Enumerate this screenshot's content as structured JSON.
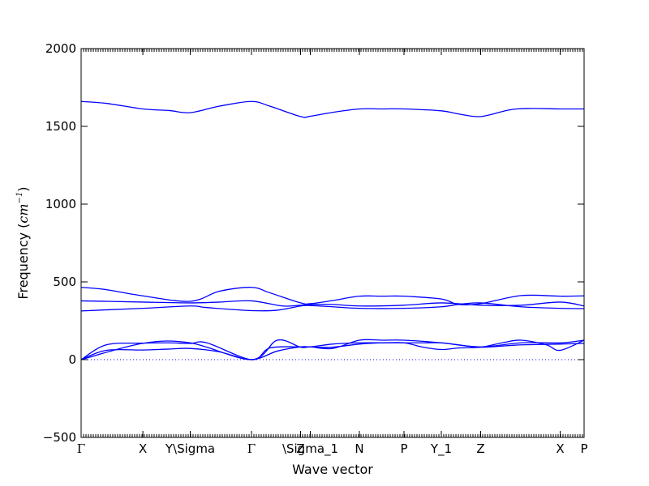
{
  "chart_data": {
    "type": "line",
    "title": "",
    "xlabel": "Wave vector",
    "ylabel_text": "Frequency (",
    "ylabel_unit": "cm",
    "ylabel_exp": "−1",
    "ylabel_close": ")",
    "ylim": [
      -500,
      2000
    ],
    "yticks": [
      -500,
      0,
      500,
      1000,
      1500,
      2000
    ],
    "grid": false,
    "legend": "none",
    "line_color": "#0000ff",
    "zero_line_color": "#0000ff",
    "x_high_symmetry": [
      {
        "label": "Γ",
        "x": 0.0
      },
      {
        "label": "X",
        "x": 0.2455
      },
      {
        "label": "Y\\Sigma",
        "x": 0.4339
      },
      {
        "label": "Γ",
        "x": 0.6774
      },
      {
        "label": "Z",
        "x": 0.8726
      },
      {
        "label": "\\Sigma_1",
        "x": 0.9113
      },
      {
        "label": "N",
        "x": 1.1065
      },
      {
        "label": "P",
        "x": 1.2839
      },
      {
        "label": "Y_1",
        "x": 1.4323
      },
      {
        "label": "Z",
        "x": 1.5887
      },
      {
        "label": "X",
        "x": 1.9048
      },
      {
        "label": "P",
        "x": 2.0
      }
    ],
    "series": [
      {
        "x": [
          0.0,
          0.1,
          0.2455,
          0.35,
          0.4339,
          0.55,
          0.6774,
          0.78,
          0.8726,
          0.9113,
          1.0,
          1.1065,
          1.2,
          1.2839,
          1.36,
          1.4323,
          1.5,
          1.5887,
          1.68,
          1.75,
          1.9048,
          2.0
        ],
        "y": [
          0,
          60,
          62,
          68,
          72,
          50,
          0,
          55,
          82,
          82,
          80,
          100,
          108,
          108,
          108,
          108,
          95,
          80,
          88,
          95,
          100,
          105
        ]
      },
      {
        "x": [
          0.0,
          0.1,
          0.2455,
          0.35,
          0.4339,
          0.5,
          0.6774,
          0.75,
          0.8726,
          0.9113,
          1.0,
          1.1065,
          1.2,
          1.2839,
          1.36,
          1.4323,
          1.5,
          1.5887,
          1.68,
          1.75,
          1.85,
          1.9048,
          2.0
        ],
        "y": [
          0,
          95,
          106,
          108,
          104,
          108,
          0,
          75,
          82,
          82,
          100,
          108,
          108,
          108,
          80,
          65,
          75,
          80,
          110,
          125,
          95,
          60,
          125
        ]
      },
      {
        "x": [
          0.0,
          0.2455,
          0.4339,
          0.6774,
          0.78,
          0.8726,
          0.9113,
          1.0,
          1.1065,
          1.2,
          1.2839,
          1.4323,
          1.5887,
          1.75,
          1.9048,
          2.0
        ],
        "y": [
          0,
          105,
          108,
          0,
          125,
          80,
          82,
          72,
          125,
          125,
          125,
          108,
          82,
          108,
          108,
          125
        ]
      },
      {
        "x": [
          0.0,
          0.1,
          0.2455,
          0.4339,
          0.5,
          0.6774,
          0.78,
          0.8726,
          0.9113,
          1.0,
          1.1065,
          1.2839,
          1.4323,
          1.5,
          1.5887,
          1.75,
          1.9048,
          2.0
        ],
        "y": [
          313,
          320,
          330,
          345,
          335,
          315,
          318,
          345,
          348,
          340,
          330,
          330,
          340,
          355,
          365,
          340,
          330,
          328
        ]
      },
      {
        "x": [
          0.0,
          0.1,
          0.2455,
          0.4339,
          0.55,
          0.6774,
          0.8,
          0.8726,
          0.9113,
          1.0,
          1.1065,
          1.2839,
          1.4323,
          1.5887,
          1.75,
          1.9048,
          2.0
        ],
        "y": [
          378,
          375,
          370,
          365,
          370,
          378,
          345,
          350,
          355,
          355,
          345,
          350,
          365,
          350,
          350,
          370,
          345
        ]
      },
      {
        "x": [
          0.0,
          0.1,
          0.2455,
          0.4339,
          0.55,
          0.6774,
          0.75,
          0.8726,
          0.9113,
          1.0,
          1.1065,
          1.2,
          1.2839,
          1.4323,
          1.5,
          1.5887,
          1.75,
          1.9048,
          2.0
        ],
        "y": [
          465,
          450,
          410,
          375,
          440,
          465,
          430,
          365,
          360,
          380,
          408,
          408,
          408,
          390,
          355,
          360,
          412,
          408,
          410
        ]
      },
      {
        "x": [
          0.0,
          0.1,
          0.2455,
          0.35,
          0.4339,
          0.55,
          0.6774,
          0.75,
          0.8726,
          0.9113,
          1.0,
          1.1065,
          1.2,
          1.2839,
          1.4323,
          1.5,
          1.5887,
          1.7,
          1.78,
          1.9048,
          2.0
        ],
        "y": [
          1660,
          1648,
          1612,
          1602,
          1588,
          1630,
          1660,
          1630,
          1563,
          1565,
          1590,
          1612,
          1612,
          1612,
          1600,
          1580,
          1563,
          1605,
          1615,
          1612,
          1612
        ]
      }
    ]
  }
}
